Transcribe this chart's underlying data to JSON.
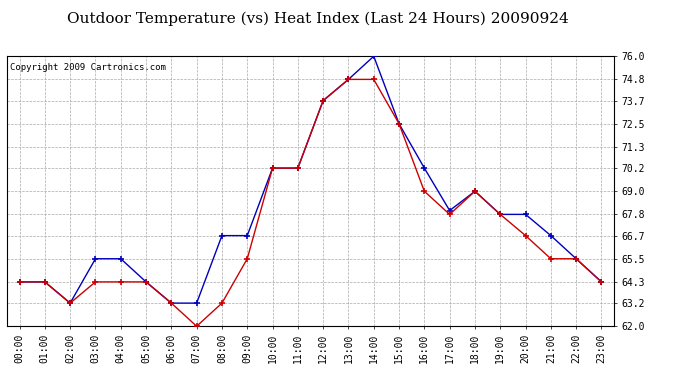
{
  "title": "Outdoor Temperature (vs) Heat Index (Last 24 Hours) 20090924",
  "copyright": "Copyright 2009 Cartronics.com",
  "x_labels": [
    "00:00",
    "01:00",
    "02:00",
    "03:00",
    "04:00",
    "05:00",
    "06:00",
    "07:00",
    "08:00",
    "09:00",
    "10:00",
    "11:00",
    "12:00",
    "13:00",
    "14:00",
    "15:00",
    "16:00",
    "17:00",
    "18:00",
    "19:00",
    "20:00",
    "21:00",
    "22:00",
    "23:00"
  ],
  "blue_data": [
    64.3,
    64.3,
    63.2,
    65.5,
    65.5,
    64.3,
    63.2,
    63.2,
    66.7,
    66.7,
    70.2,
    70.2,
    73.7,
    74.8,
    76.0,
    72.5,
    70.2,
    68.0,
    69.0,
    67.8,
    67.8,
    66.7,
    65.5,
    64.3
  ],
  "red_data": [
    64.3,
    64.3,
    63.2,
    64.3,
    64.3,
    64.3,
    63.2,
    62.0,
    63.2,
    65.5,
    70.2,
    70.2,
    73.7,
    74.8,
    74.8,
    72.5,
    69.0,
    67.8,
    69.0,
    67.8,
    66.7,
    65.5,
    65.5,
    64.3
  ],
  "ylim": [
    62.0,
    76.0
  ],
  "yticks": [
    62.0,
    63.2,
    64.3,
    65.5,
    66.7,
    67.8,
    69.0,
    70.2,
    71.3,
    72.5,
    73.7,
    74.8,
    76.0
  ],
  "blue_color": "#0000bb",
  "red_color": "#cc0000",
  "grid_color": "#aaaaaa",
  "bg_color": "#ffffff",
  "title_fontsize": 11,
  "copyright_fontsize": 6.5,
  "tick_fontsize": 7
}
